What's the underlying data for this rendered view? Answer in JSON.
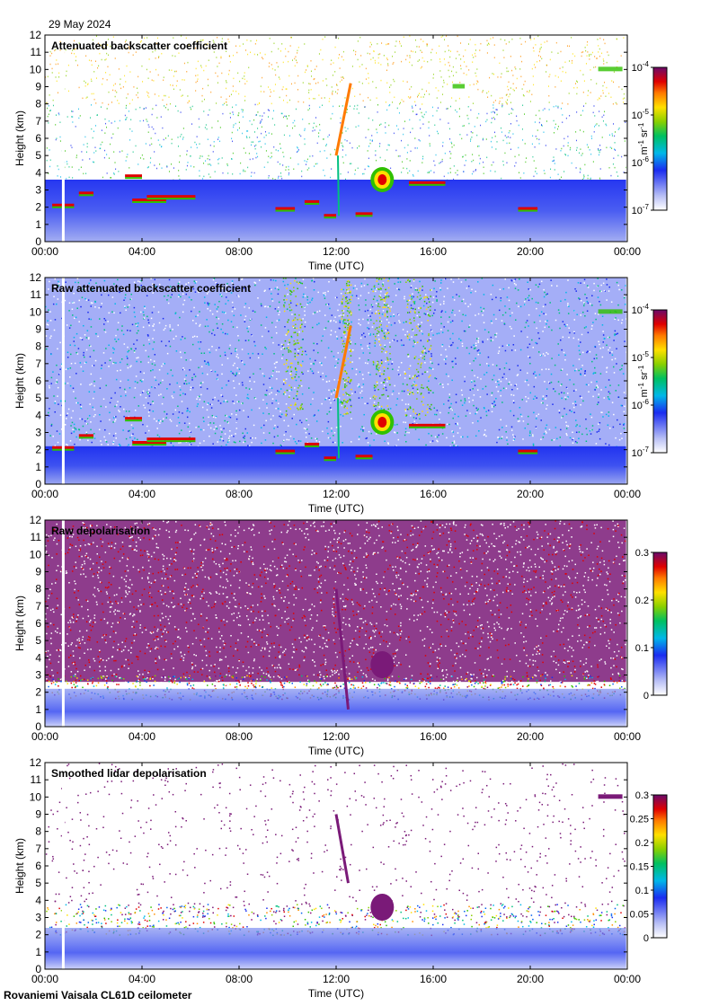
{
  "date": "29 May 2024",
  "footer": "Rovaniemi Vaisala CL61D ceilometer",
  "colors": {
    "background": "#ffffff",
    "plot_bg": "#ffffff",
    "ground_blue": "#2a3fe0",
    "ground_light": "#9aa6f0",
    "purple": "#7a1a78"
  },
  "chart_data": [
    {
      "type": "heatmap",
      "title": "Attenuated backscatter coefficient",
      "xlabel": "Time (UTC)",
      "ylabel": "Height (km)",
      "x_ticks": [
        "00:00",
        "04:00",
        "08:00",
        "12:00",
        "16:00",
        "20:00",
        "00:00"
      ],
      "y_ticks": [
        "0",
        "1",
        "2",
        "3",
        "4",
        "5",
        "6",
        "7",
        "8",
        "9",
        "10",
        "11",
        "12"
      ],
      "xlim_hours": [
        0,
        24
      ],
      "ylim_km": [
        0,
        12
      ],
      "colorbar": {
        "scale": "log",
        "range": [
          1e-07,
          0.0001
        ],
        "ticks": [
          {
            "base": "10",
            "exp": "-4"
          },
          {
            "base": "10",
            "exp": "-5"
          },
          {
            "base": "10",
            "exp": "-6"
          },
          {
            "base": "10",
            "exp": "-7"
          }
        ],
        "units": "m-1 sr-1"
      },
      "noise": "sparse",
      "mixed_layer_top_km": 3.6,
      "cloud_layers": [
        {
          "t0": 0.3,
          "t1": 1.2,
          "h": 2.1
        },
        {
          "t0": 1.4,
          "t1": 2.0,
          "h": 2.8
        },
        {
          "t0": 3.3,
          "t1": 4.0,
          "h": 3.8
        },
        {
          "t0": 3.6,
          "t1": 5.0,
          "h": 2.4
        },
        {
          "t0": 4.2,
          "t1": 6.2,
          "h": 2.6
        },
        {
          "t0": 9.5,
          "t1": 10.3,
          "h": 1.9
        },
        {
          "t0": 10.7,
          "t1": 11.3,
          "h": 2.3
        },
        {
          "t0": 11.5,
          "t1": 12.0,
          "h": 1.5
        },
        {
          "t0": 12.8,
          "t1": 13.5,
          "h": 1.6
        },
        {
          "t0": 15.0,
          "t1": 16.5,
          "h": 3.4
        },
        {
          "t0": 19.5,
          "t1": 20.3,
          "h": 1.9
        }
      ],
      "features": [
        {
          "kind": "high_cloud",
          "t0": 12.0,
          "t1": 12.6,
          "h0": 5.0,
          "h1": 9.2
        },
        {
          "kind": "cumulus",
          "t": 13.9,
          "h": 3.6,
          "w": 0.8
        },
        {
          "kind": "cirrus",
          "t0": 22.8,
          "t1": 23.8,
          "h": 10.0
        },
        {
          "kind": "cirrus",
          "t0": 16.8,
          "t1": 17.3,
          "h": 9.0
        }
      ]
    },
    {
      "type": "heatmap",
      "title": "Raw attenuated backscatter coefficient",
      "xlabel": "Time (UTC)",
      "ylabel": "Height (km)",
      "x_ticks": [
        "00:00",
        "04:00",
        "08:00",
        "12:00",
        "16:00",
        "20:00",
        "00:00"
      ],
      "y_ticks": [
        "0",
        "1",
        "2",
        "3",
        "4",
        "5",
        "6",
        "7",
        "8",
        "9",
        "10",
        "11",
        "12"
      ],
      "xlim_hours": [
        0,
        24
      ],
      "ylim_km": [
        0,
        12
      ],
      "colorbar": {
        "scale": "log",
        "range": [
          1e-07,
          0.0001
        ],
        "ticks": [
          {
            "base": "10",
            "exp": "-4"
          },
          {
            "base": "10",
            "exp": "-5"
          },
          {
            "base": "10",
            "exp": "-6"
          },
          {
            "base": "10",
            "exp": "-7"
          }
        ],
        "units": "m-1 sr-1"
      },
      "noise": "dense_blue",
      "mixed_layer_top_km": 2.2,
      "cloud_layers": [
        {
          "t0": 0.3,
          "t1": 1.2,
          "h": 2.1
        },
        {
          "t0": 1.4,
          "t1": 2.0,
          "h": 2.8
        },
        {
          "t0": 3.3,
          "t1": 4.0,
          "h": 3.8
        },
        {
          "t0": 3.6,
          "t1": 5.0,
          "h": 2.4
        },
        {
          "t0": 4.2,
          "t1": 6.2,
          "h": 2.6
        },
        {
          "t0": 9.5,
          "t1": 10.3,
          "h": 1.9
        },
        {
          "t0": 10.7,
          "t1": 11.3,
          "h": 2.3
        },
        {
          "t0": 11.5,
          "t1": 12.0,
          "h": 1.5
        },
        {
          "t0": 12.8,
          "t1": 13.5,
          "h": 1.6
        },
        {
          "t0": 15.0,
          "t1": 16.5,
          "h": 3.4
        },
        {
          "t0": 19.5,
          "t1": 20.3,
          "h": 1.9
        }
      ],
      "features": [
        {
          "kind": "high_cloud",
          "t0": 12.0,
          "t1": 12.6,
          "h0": 5.0,
          "h1": 9.2
        },
        {
          "kind": "cumulus",
          "t": 13.9,
          "h": 3.6,
          "w": 0.8
        },
        {
          "kind": "cirrus",
          "t0": 22.8,
          "t1": 23.8,
          "h": 10.0
        }
      ]
    },
    {
      "type": "heatmap",
      "title": "Raw depolarisation",
      "xlabel": "Time (UTC)",
      "ylabel": "Height (km)",
      "x_ticks": [
        "00:00",
        "04:00",
        "08:00",
        "12:00",
        "16:00",
        "20:00",
        "00:00"
      ],
      "y_ticks": [
        "0",
        "1",
        "2",
        "3",
        "4",
        "5",
        "6",
        "7",
        "8",
        "9",
        "10",
        "11",
        "12"
      ],
      "xlim_hours": [
        0,
        24
      ],
      "ylim_km": [
        0,
        12
      ],
      "colorbar": {
        "scale": "linear",
        "range": [
          0,
          0.3
        ],
        "ticks": [
          {
            "base": "0.3"
          },
          {
            "base": "0.2"
          },
          {
            "base": "0.1"
          },
          {
            "base": "0"
          }
        ],
        "units": ""
      },
      "noise": "dense_purple",
      "mixed_layer_top_km": 2.2,
      "cloud_layers": [],
      "features": [
        {
          "kind": "purple_blob",
          "t": 13.9,
          "h": 3.6,
          "w": 0.8
        },
        {
          "kind": "purple_streak",
          "t0": 12.0,
          "t1": 12.5,
          "h0": 1.0,
          "h1": 8.0
        }
      ]
    },
    {
      "type": "heatmap",
      "title": "Smoothed lidar depolarisation",
      "xlabel": "Time (UTC)",
      "ylabel": "Height (km)",
      "x_ticks": [
        "00:00",
        "04:00",
        "08:00",
        "12:00",
        "16:00",
        "20:00",
        "00:00"
      ],
      "y_ticks": [
        "0",
        "1",
        "2",
        "3",
        "4",
        "5",
        "6",
        "7",
        "8",
        "9",
        "10",
        "11",
        "12"
      ],
      "xlim_hours": [
        0,
        24
      ],
      "ylim_km": [
        0,
        12
      ],
      "colorbar": {
        "scale": "linear",
        "range": [
          0,
          0.3
        ],
        "ticks": [
          {
            "base": "0.3"
          },
          {
            "base": "0.25"
          },
          {
            "base": "0.2"
          },
          {
            "base": "0.15"
          },
          {
            "base": "0.1"
          },
          {
            "base": "0.05"
          },
          {
            "base": "0"
          }
        ],
        "units": ""
      },
      "noise": "sparse_purple",
      "mixed_layer_top_km": 2.4,
      "cloud_layers": [],
      "features": [
        {
          "kind": "purple_blob",
          "t": 13.9,
          "h": 3.6,
          "w": 0.8
        },
        {
          "kind": "purple_streak",
          "t0": 12.0,
          "t1": 12.5,
          "h0": 5.0,
          "h1": 9.0
        },
        {
          "kind": "cirrus_purple",
          "t0": 22.8,
          "t1": 23.8,
          "h": 10.0
        }
      ]
    }
  ]
}
